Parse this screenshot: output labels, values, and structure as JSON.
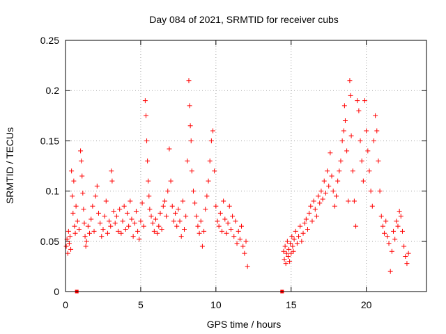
{
  "chart_data": {
    "type": "scatter",
    "title": "Day 084 of 2021, SRMTID for receiver cubs",
    "xlabel": "GPS time / hours",
    "ylabel": "SRMTID / TECUs",
    "xlim": [
      0,
      24
    ],
    "ylim": [
      0,
      0.25
    ],
    "x_ticks": [
      0,
      5,
      10,
      15,
      20
    ],
    "y_ticks": [
      0,
      0.05,
      0.1,
      0.15,
      0.2,
      0.25
    ],
    "x_tick_labels": [
      "0",
      "5",
      "10",
      "15",
      "20"
    ],
    "y_tick_labels": [
      "0",
      "0.05",
      "0.1",
      "0.15",
      "0.2",
      "0.25"
    ],
    "grid": true,
    "marker": "plus",
    "color": "#ff0000",
    "zero_markers_x": [
      0.75,
      14.4
    ],
    "series": [
      {
        "name": "SRMTID",
        "points": [
          [
            0.05,
            0.045
          ],
          [
            0.1,
            0.052
          ],
          [
            0.15,
            0.038
          ],
          [
            0.2,
            0.06
          ],
          [
            0.25,
            0.048
          ],
          [
            0.3,
            0.055
          ],
          [
            0.35,
            0.042
          ],
          [
            0.4,
            0.12
          ],
          [
            0.45,
            0.095
          ],
          [
            0.5,
            0.078
          ],
          [
            0.55,
            0.11
          ],
          [
            0.6,
            0.065
          ],
          [
            0.65,
            0.058
          ],
          [
            0.7,
            0.085
          ],
          [
            0.8,
            0.07
          ],
          [
            0.9,
            0.062
          ],
          [
            1.0,
            0.14
          ],
          [
            1.05,
            0.13
          ],
          [
            1.1,
            0.115
          ],
          [
            1.15,
            0.098
          ],
          [
            1.2,
            0.082
          ],
          [
            1.25,
            0.068
          ],
          [
            1.3,
            0.055
          ],
          [
            1.35,
            0.045
          ],
          [
            1.4,
            0.05
          ],
          [
            1.5,
            0.065
          ],
          [
            1.6,
            0.058
          ],
          [
            1.7,
            0.072
          ],
          [
            1.8,
            0.085
          ],
          [
            1.9,
            0.06
          ],
          [
            2.0,
            0.095
          ],
          [
            2.1,
            0.105
          ],
          [
            2.2,
            0.078
          ],
          [
            2.3,
            0.068
          ],
          [
            2.4,
            0.055
          ],
          [
            2.5,
            0.062
          ],
          [
            2.6,
            0.075
          ],
          [
            2.7,
            0.09
          ],
          [
            2.8,
            0.058
          ],
          [
            2.9,
            0.07
          ],
          [
            3.0,
            0.065
          ],
          [
            3.05,
            0.12
          ],
          [
            3.1,
            0.11
          ],
          [
            3.2,
            0.08
          ],
          [
            3.3,
            0.068
          ],
          [
            3.4,
            0.075
          ],
          [
            3.5,
            0.06
          ],
          [
            3.6,
            0.082
          ],
          [
            3.7,
            0.058
          ],
          [
            3.8,
            0.07
          ],
          [
            3.9,
            0.085
          ],
          [
            4.0,
            0.062
          ],
          [
            4.1,
            0.078
          ],
          [
            4.2,
            0.065
          ],
          [
            4.3,
            0.09
          ],
          [
            4.4,
            0.072
          ],
          [
            4.5,
            0.055
          ],
          [
            4.6,
            0.068
          ],
          [
            4.7,
            0.08
          ],
          [
            4.8,
            0.06
          ],
          [
            4.9,
            0.052
          ],
          [
            5.0,
            0.07
          ],
          [
            5.1,
            0.088
          ],
          [
            5.2,
            0.065
          ],
          [
            5.3,
            0.19
          ],
          [
            5.35,
            0.175
          ],
          [
            5.4,
            0.15
          ],
          [
            5.45,
            0.13
          ],
          [
            5.5,
            0.11
          ],
          [
            5.55,
            0.095
          ],
          [
            5.6,
            0.082
          ],
          [
            5.7,
            0.075
          ],
          [
            5.8,
            0.068
          ],
          [
            5.9,
            0.06
          ],
          [
            6.0,
            0.072
          ],
          [
            6.1,
            0.058
          ],
          [
            6.2,
            0.065
          ],
          [
            6.3,
            0.078
          ],
          [
            6.4,
            0.062
          ],
          [
            6.5,
            0.085
          ],
          [
            6.6,
            0.09
          ],
          [
            6.7,
            0.075
          ],
          [
            6.8,
            0.1
          ],
          [
            6.9,
            0.142
          ],
          [
            7.0,
            0.11
          ],
          [
            7.1,
            0.085
          ],
          [
            7.2,
            0.07
          ],
          [
            7.3,
            0.078
          ],
          [
            7.4,
            0.065
          ],
          [
            7.5,
            0.082
          ],
          [
            7.6,
            0.07
          ],
          [
            7.7,
            0.055
          ],
          [
            7.8,
            0.09
          ],
          [
            7.9,
            0.062
          ],
          [
            8.0,
            0.075
          ],
          [
            8.1,
            0.13
          ],
          [
            8.2,
            0.21
          ],
          [
            8.25,
            0.185
          ],
          [
            8.3,
            0.165
          ],
          [
            8.35,
            0.15
          ],
          [
            8.4,
            0.12
          ],
          [
            8.5,
            0.1
          ],
          [
            8.6,
            0.088
          ],
          [
            8.7,
            0.075
          ],
          [
            8.8,
            0.065
          ],
          [
            8.9,
            0.058
          ],
          [
            9.0,
            0.07
          ],
          [
            9.1,
            0.045
          ],
          [
            9.2,
            0.06
          ],
          [
            9.3,
            0.082
          ],
          [
            9.4,
            0.095
          ],
          [
            9.5,
            0.11
          ],
          [
            9.6,
            0.13
          ],
          [
            9.7,
            0.15
          ],
          [
            9.8,
            0.16
          ],
          [
            9.9,
            0.12
          ],
          [
            10.0,
            0.085
          ],
          [
            10.1,
            0.07
          ],
          [
            10.2,
            0.065
          ],
          [
            10.3,
            0.078
          ],
          [
            10.4,
            0.06
          ],
          [
            10.5,
            0.09
          ],
          [
            10.6,
            0.072
          ],
          [
            10.7,
            0.058
          ],
          [
            10.8,
            0.068
          ],
          [
            10.9,
            0.085
          ],
          [
            11.0,
            0.062
          ],
          [
            11.1,
            0.075
          ],
          [
            11.2,
            0.055
          ],
          [
            11.3,
            0.07
          ],
          [
            11.4,
            0.048
          ],
          [
            11.5,
            0.06
          ],
          [
            11.6,
            0.052
          ],
          [
            11.7,
            0.065
          ],
          [
            11.8,
            0.045
          ],
          [
            11.9,
            0.038
          ],
          [
            12.0,
            0.05
          ],
          [
            12.1,
            0.025
          ],
          [
            14.5,
            0.04
          ],
          [
            14.55,
            0.032
          ],
          [
            14.6,
            0.045
          ],
          [
            14.65,
            0.028
          ],
          [
            14.7,
            0.038
          ],
          [
            14.75,
            0.05
          ],
          [
            14.8,
            0.035
          ],
          [
            14.85,
            0.042
          ],
          [
            14.9,
            0.03
          ],
          [
            14.95,
            0.048
          ],
          [
            15.0,
            0.038
          ],
          [
            15.05,
            0.055
          ],
          [
            15.1,
            0.045
          ],
          [
            15.15,
            0.04
          ],
          [
            15.2,
            0.052
          ],
          [
            15.3,
            0.06
          ],
          [
            15.4,
            0.048
          ],
          [
            15.5,
            0.055
          ],
          [
            15.6,
            0.065
          ],
          [
            15.7,
            0.05
          ],
          [
            15.8,
            0.058
          ],
          [
            15.9,
            0.068
          ],
          [
            16.0,
            0.072
          ],
          [
            16.1,
            0.062
          ],
          [
            16.2,
            0.078
          ],
          [
            16.3,
            0.085
          ],
          [
            16.4,
            0.07
          ],
          [
            16.5,
            0.09
          ],
          [
            16.6,
            0.082
          ],
          [
            16.7,
            0.075
          ],
          [
            16.8,
            0.095
          ],
          [
            16.9,
            0.088
          ],
          [
            17.0,
            0.1
          ],
          [
            17.1,
            0.092
          ],
          [
            17.2,
            0.11
          ],
          [
            17.3,
            0.098
          ],
          [
            17.4,
            0.12
          ],
          [
            17.5,
            0.105
          ],
          [
            17.6,
            0.138
          ],
          [
            17.7,
            0.115
          ],
          [
            17.8,
            0.1
          ],
          [
            17.9,
            0.085
          ],
          [
            18.0,
            0.095
          ],
          [
            18.1,
            0.11
          ],
          [
            18.2,
            0.12
          ],
          [
            18.3,
            0.13
          ],
          [
            18.4,
            0.15
          ],
          [
            18.5,
            0.16
          ],
          [
            18.55,
            0.185
          ],
          [
            18.6,
            0.17
          ],
          [
            18.7,
            0.14
          ],
          [
            18.8,
            0.09
          ],
          [
            18.9,
            0.21
          ],
          [
            18.95,
            0.195
          ],
          [
            19.0,
            0.155
          ],
          [
            19.1,
            0.12
          ],
          [
            19.2,
            0.09
          ],
          [
            19.3,
            0.065
          ],
          [
            19.4,
            0.19
          ],
          [
            19.5,
            0.18
          ],
          [
            19.6,
            0.15
          ],
          [
            19.7,
            0.13
          ],
          [
            19.8,
            0.11
          ],
          [
            19.9,
            0.19
          ],
          [
            20.0,
            0.16
          ],
          [
            20.1,
            0.14
          ],
          [
            20.2,
            0.12
          ],
          [
            20.3,
            0.1
          ],
          [
            20.4,
            0.085
          ],
          [
            20.5,
            0.15
          ],
          [
            20.6,
            0.175
          ],
          [
            20.7,
            0.16
          ],
          [
            20.8,
            0.13
          ],
          [
            20.9,
            0.1
          ],
          [
            21.0,
            0.075
          ],
          [
            21.1,
            0.065
          ],
          [
            21.2,
            0.058
          ],
          [
            21.3,
            0.07
          ],
          [
            21.4,
            0.055
          ],
          [
            21.5,
            0.048
          ],
          [
            21.6,
            0.02
          ],
          [
            21.7,
            0.04
          ],
          [
            21.8,
            0.06
          ],
          [
            21.9,
            0.052
          ],
          [
            22.0,
            0.07
          ],
          [
            22.1,
            0.065
          ],
          [
            22.2,
            0.08
          ],
          [
            22.3,
            0.075
          ],
          [
            22.4,
            0.06
          ],
          [
            22.5,
            0.045
          ],
          [
            22.6,
            0.035
          ],
          [
            22.7,
            0.028
          ],
          [
            22.8,
            0.038
          ]
        ]
      }
    ]
  }
}
